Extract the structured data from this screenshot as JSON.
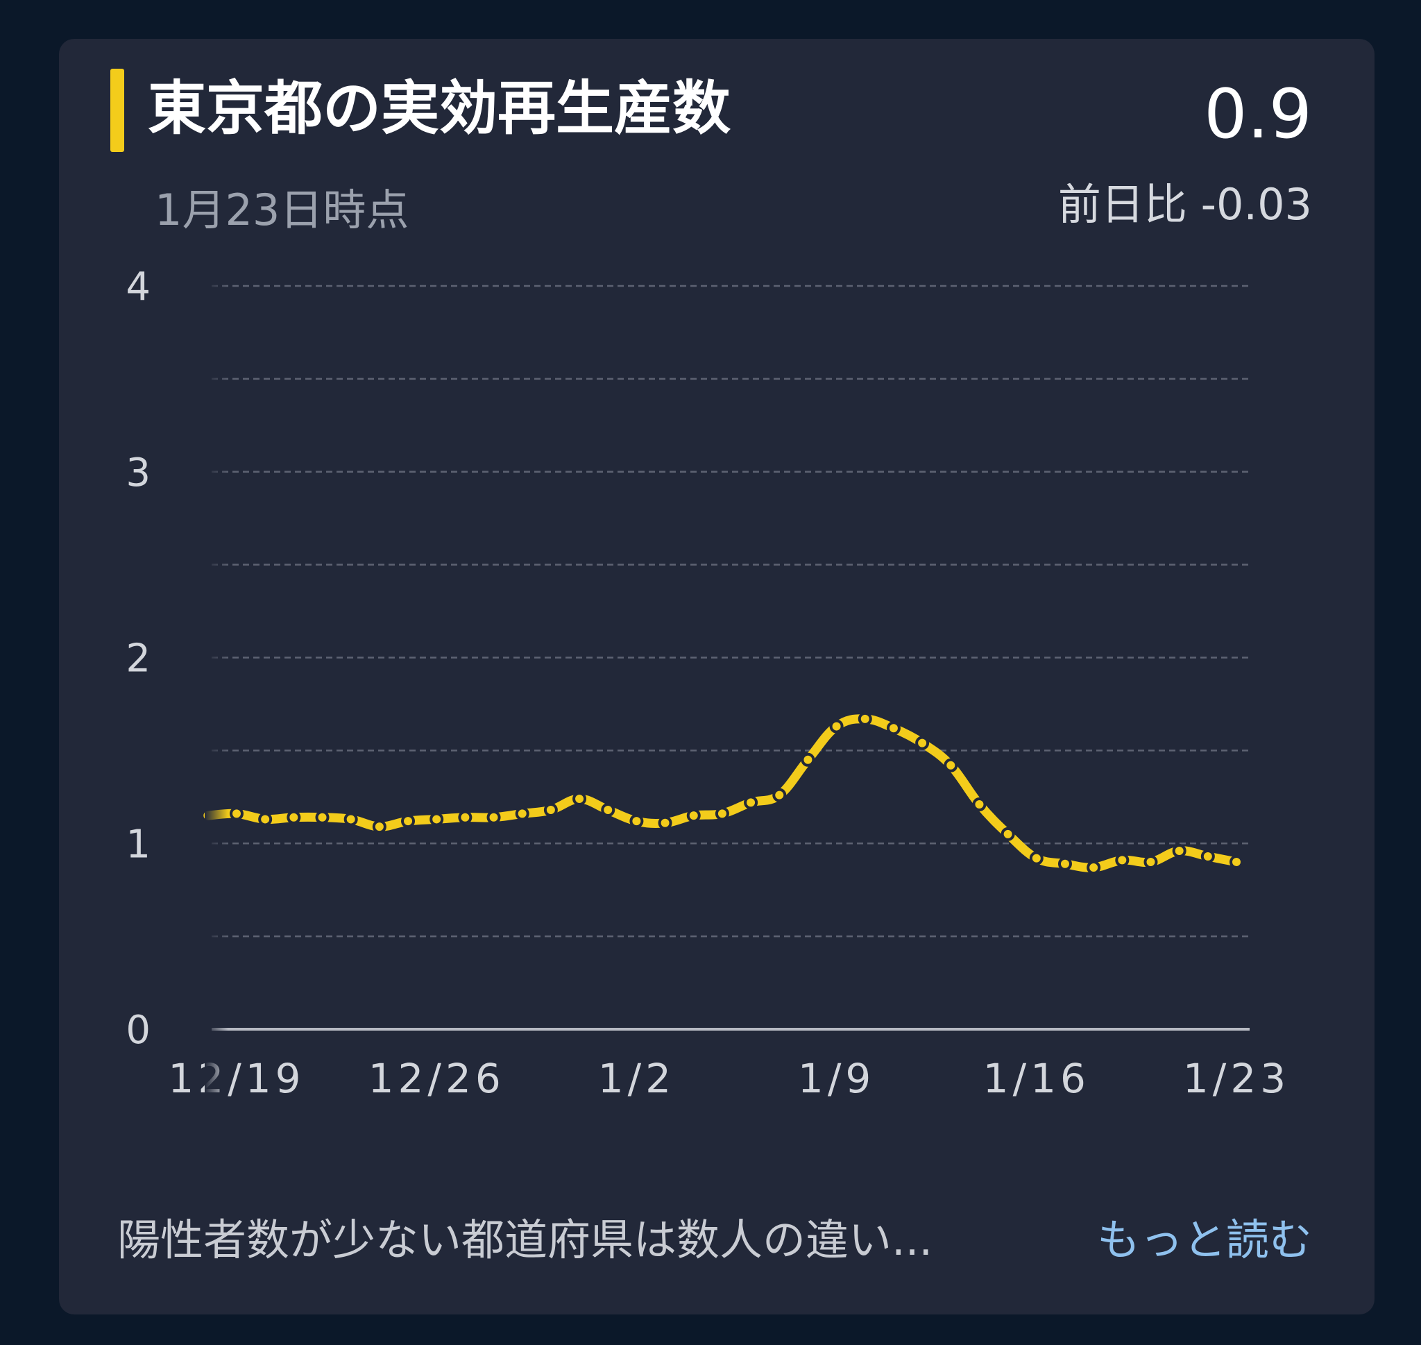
{
  "card": {
    "title": "東京都の実効再生産数",
    "subtitle": "1月23日時点",
    "value": "0.9",
    "delta": "前日比 -0.03",
    "footer_text": "陽性者数が少ない都道府県は数人の違い...",
    "more_label": "もっと読む"
  },
  "colors": {
    "accent": "#f3cc1b",
    "line": "#f3cc1b",
    "link": "#8fc1ee",
    "card_bg": "#222839",
    "page_bg": "#0b1829"
  },
  "chart_data": {
    "type": "line",
    "title": "",
    "xlabel": "",
    "ylabel": "",
    "ylim": [
      0,
      4
    ],
    "y_ticks": [
      "0",
      "1",
      "2",
      "3",
      "4"
    ],
    "grid": true,
    "x_tick_labels": [
      "12/19",
      "12/26",
      "1/2",
      "1/9",
      "1/16",
      "1/23"
    ],
    "x": [
      "12/18",
      "12/19",
      "12/20",
      "12/21",
      "12/22",
      "12/23",
      "12/24",
      "12/25",
      "12/26",
      "12/27",
      "12/28",
      "12/29",
      "12/30",
      "12/31",
      "1/1",
      "1/2",
      "1/3",
      "1/4",
      "1/5",
      "1/6",
      "1/7",
      "1/8",
      "1/9",
      "1/10",
      "1/11",
      "1/12",
      "1/13",
      "1/14",
      "1/15",
      "1/16",
      "1/17",
      "1/18",
      "1/19",
      "1/20",
      "1/21",
      "1/22",
      "1/23"
    ],
    "series": [
      {
        "values": [
          1.15,
          1.16,
          1.13,
          1.14,
          1.14,
          1.13,
          1.09,
          1.12,
          1.13,
          1.14,
          1.14,
          1.16,
          1.18,
          1.24,
          1.18,
          1.12,
          1.11,
          1.15,
          1.16,
          1.22,
          1.26,
          1.45,
          1.63,
          1.67,
          1.62,
          1.54,
          1.42,
          1.21,
          1.05,
          0.92,
          0.89,
          0.87,
          0.91,
          0.9,
          0.96,
          0.93,
          0.9
        ]
      }
    ]
  }
}
